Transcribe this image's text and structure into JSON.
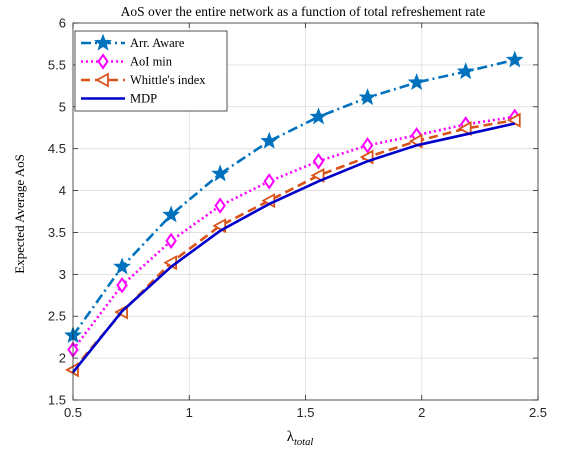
{
  "chart_data": {
    "type": "line",
    "title": "AoS over the entire network as a function of total refreshement rate",
    "xlabel": "λ",
    "xlabel_subscript": "total",
    "ylabel": "Expected Average AoS",
    "xlim": [
      0.5,
      2.5
    ],
    "ylim": [
      1.5,
      6
    ],
    "xticks": [
      0.5,
      1,
      1.5,
      2,
      2.5
    ],
    "xtick_labels": [
      "0.5",
      "1",
      "1.5",
      "2",
      "2.5"
    ],
    "yticks": [
      1.5,
      2,
      2.5,
      3,
      3.5,
      4,
      4.5,
      5,
      5.5,
      6
    ],
    "ytick_labels": [
      "1.5",
      "2",
      "2.5",
      "3",
      "3.5",
      "4",
      "4.5",
      "5",
      "5.5",
      "6"
    ],
    "grid": true,
    "legend_position": "top-left",
    "x": [
      0.5,
      0.711,
      0.922,
      1.133,
      1.344,
      1.556,
      1.767,
      1.978,
      2.189,
      2.4
    ],
    "series": [
      {
        "name": "Arr. Aware",
        "color": "#0072BD",
        "line_style": "dash-dot",
        "marker": "star",
        "values": [
          2.27,
          3.09,
          3.71,
          4.2,
          4.59,
          4.88,
          5.11,
          5.29,
          5.42,
          5.56
        ]
      },
      {
        "name": "AoI min",
        "color": "#FF00FF",
        "line_style": "dotted",
        "marker": "diamond",
        "values": [
          2.1,
          2.87,
          3.4,
          3.82,
          4.11,
          4.35,
          4.54,
          4.66,
          4.79,
          4.88
        ]
      },
      {
        "name": "Whittle's index",
        "color": "#D95319",
        "line_style": "dashed",
        "marker": "triangle-left",
        "values": [
          1.86,
          2.55,
          3.14,
          3.58,
          3.88,
          4.18,
          4.4,
          4.59,
          4.74,
          4.84
        ]
      },
      {
        "name": "MDP",
        "color": "#0000CC",
        "line_style": "solid",
        "marker": "none",
        "values": [
          1.83,
          2.56,
          3.09,
          3.52,
          3.84,
          4.11,
          4.35,
          4.54,
          4.67,
          4.8
        ]
      }
    ]
  }
}
